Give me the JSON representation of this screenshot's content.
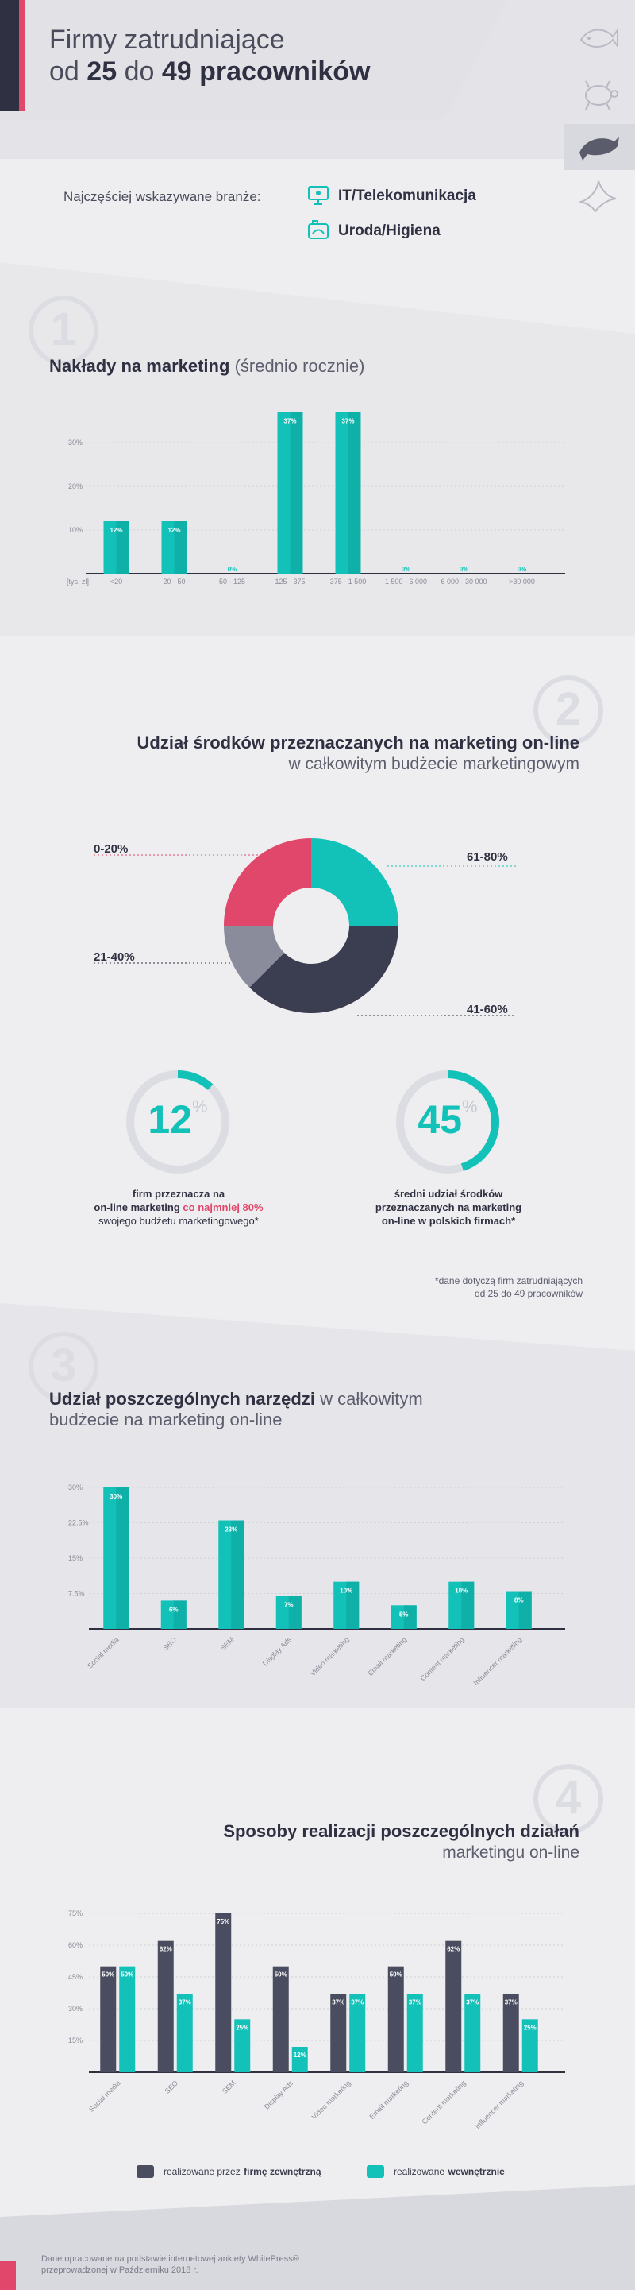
{
  "header": {
    "title_line1": "Firmy zatrudniające",
    "title_od": "od",
    "title_from": "25",
    "title_do": "do",
    "title_to": "49",
    "title_tail": "pracowników"
  },
  "industries": {
    "label": "Najczęściej wskazywane branże:",
    "items": [
      "IT/Telekomunikacja",
      "Uroda/Higiena"
    ]
  },
  "section1": {
    "number": "1",
    "title_bold": "Nakłady na marketing",
    "title_light": "(średnio rocznie)"
  },
  "section2": {
    "number": "2",
    "title_line1": "Udział środków przeznaczanych na marketing on-line",
    "title_line2": "w całkowitym budżecie marketingowym",
    "donut_labels": [
      "0-20%",
      "21-40%",
      "41-60%",
      "61-80%"
    ],
    "stat1": {
      "value": "12",
      "unit": "%",
      "line1": "firm przeznacza na",
      "line2_a": "on-line marketing",
      "line2_b": "co najmniej 80%",
      "line3": "swojego budżetu marketingowego*"
    },
    "stat2": {
      "value": "45",
      "unit": "%",
      "line1": "średni udział środków",
      "line2": "przeznaczanych na marketing",
      "line3": "on-line w polskich firmach*"
    },
    "footnote_line1": "*dane dotyczą firm zatrudniających",
    "footnote_line2": "od 25 do 49 pracowników"
  },
  "section3": {
    "number": "3",
    "title_bold": "Udział poszczególnych narzędzi",
    "title_light1": "w całkowitym",
    "title_light2": "budżecie na marketing on-line"
  },
  "section4": {
    "number": "4",
    "title_line1": "Sposoby realizacji poszczególnych działań",
    "title_line2": "marketingu on-line",
    "legend_external_a": "realizowane przez",
    "legend_external_b": "firmę zewnętrzną",
    "legend_internal_a": "realizowane",
    "legend_internal_b": "wewnętrznie"
  },
  "footer": {
    "line1": "Dane opracowane na podstawie internetowej ankiety WhitePress®",
    "line2": "przeprowadzonej w Październiku 2018 r."
  },
  "colors": {
    "teal": "#12c1b8",
    "navy": "#3b3d50",
    "pink": "#e0476a",
    "gray": "#8a8c9c",
    "light_gray": "#dcdde2"
  },
  "icons": [
    "fish-icon",
    "turtle-icon",
    "dolphin-icon",
    "bird-icon",
    "monitor-icon",
    "cosmetics-icon"
  ],
  "chart_data": [
    {
      "type": "bar",
      "categories": [
        "<20",
        "20 - 50",
        "50 - 125",
        "125 - 375",
        "375 - 1 500",
        "1 500 - 6 000",
        "6 000 - 30 000",
        ">30 000"
      ],
      "values": [
        12,
        12,
        0,
        37,
        37,
        0,
        0,
        0
      ],
      "value_labels": [
        "12%",
        "12%",
        "0%",
        "37%",
        "37%",
        "0%",
        "0%",
        "0%"
      ],
      "x_unit_label": "[tys. zł]",
      "y_ticks": [
        "10%",
        "20%",
        "30%"
      ],
      "ylim": [
        0,
        40
      ],
      "grid": true
    },
    {
      "type": "pie",
      "categories": [
        "61-80%",
        "41-60%",
        "21-40%",
        "0-20%"
      ],
      "values": [
        25,
        37.5,
        12.5,
        25
      ],
      "colors": [
        "#12c1b8",
        "#3b3d50",
        "#8a8c9c",
        "#e0476a"
      ]
    },
    {
      "type": "bar",
      "categories": [
        "Social media",
        "SEO",
        "SEM",
        "Display Ads",
        "Video marketing",
        "Email marketing",
        "Content marketing",
        "Influencer marketing"
      ],
      "values": [
        30,
        6,
        23,
        7,
        10,
        5,
        10,
        8
      ],
      "value_labels": [
        "30%",
        "6%",
        "23%",
        "7%",
        "10%",
        "5%",
        "10%",
        "8%"
      ],
      "y_ticks": [
        "7.5%",
        "15%",
        "22.5%",
        "30%"
      ],
      "ylim": [
        0,
        30
      ],
      "grid": true
    },
    {
      "type": "bar",
      "categories": [
        "Social media",
        "SEO",
        "SEM",
        "Display Ads",
        "Video marketing",
        "Email marketing",
        "Content marketing",
        "Influencer marketing"
      ],
      "series": [
        {
          "name": "realizowane przez firmę zewnętrzną",
          "values": [
            50,
            62,
            75,
            50,
            37,
            50,
            62,
            37
          ],
          "labels": [
            "50%",
            "62%",
            "75%",
            "50%",
            "37%",
            "50%",
            "62%",
            "37%"
          ]
        },
        {
          "name": "realizowane wewnętrznie",
          "values": [
            50,
            37,
            25,
            12,
            37,
            37,
            37,
            25
          ],
          "labels": [
            "50%",
            "37%",
            "25%",
            "12%",
            "37%",
            "37%",
            "37%",
            "25%"
          ]
        }
      ],
      "y_ticks": [
        "15%",
        "30%",
        "45%",
        "60%",
        "75%"
      ],
      "ylim": [
        0,
        75
      ],
      "grid": true
    }
  ]
}
